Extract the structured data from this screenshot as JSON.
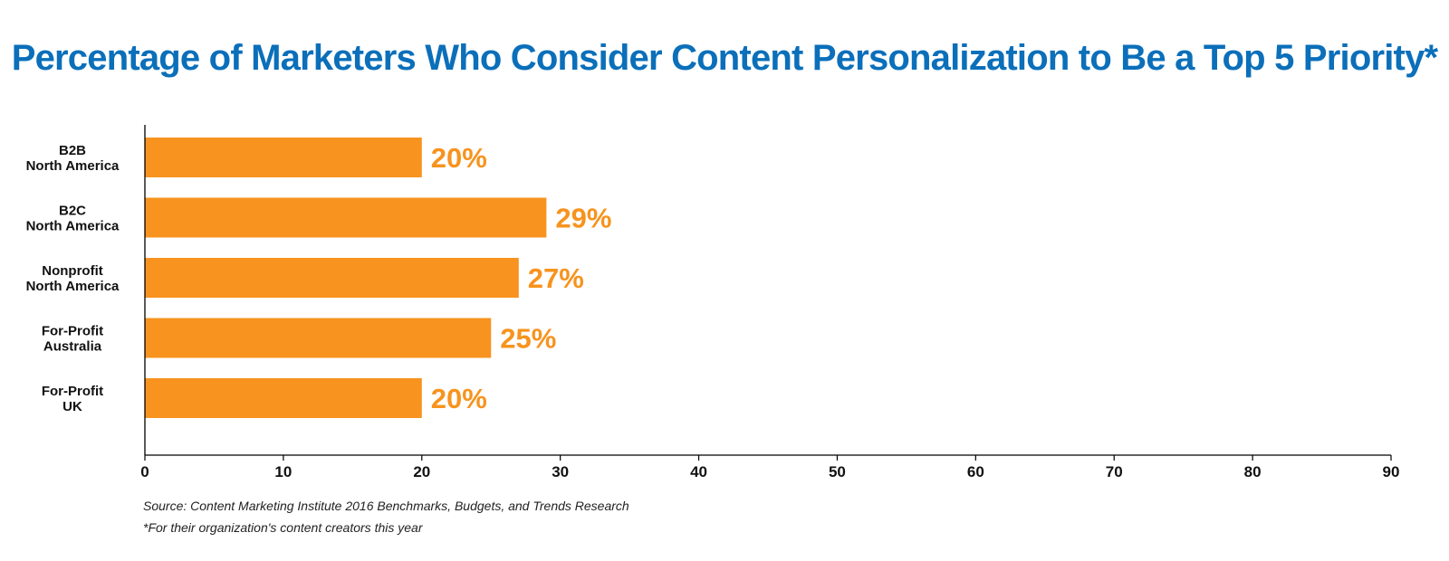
{
  "chart_data": {
    "type": "bar",
    "orientation": "horizontal",
    "title": "Percentage of Marketers Who Consider Content Personalization to Be a Top 5 Priority*",
    "categories": [
      [
        "B2B",
        "North America"
      ],
      [
        "B2C",
        "North America"
      ],
      [
        "Nonprofit",
        "North America"
      ],
      [
        "For-Profit",
        "Australia"
      ],
      [
        "For-Profit",
        "UK"
      ]
    ],
    "values": [
      20,
      29,
      27,
      25,
      20
    ],
    "data_labels": [
      "20%",
      "29%",
      "27%",
      "25%",
      "20%"
    ],
    "xlim": [
      0,
      90
    ],
    "xticks": [
      0,
      10,
      20,
      30,
      40,
      50,
      60,
      70,
      80,
      90
    ],
    "grid": false,
    "legend": "none",
    "bar_color": "#f7931e",
    "label_color": "#f7931e",
    "title_color": "#0b6fba",
    "source": "Source: Content Marketing Institute 2016 Benchmarks, Budgets, and Trends Research",
    "footnote": "*For their organization's content creators this year"
  }
}
